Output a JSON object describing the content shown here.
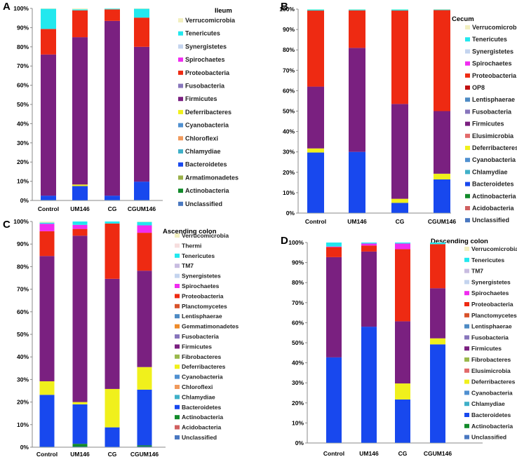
{
  "colors": {
    "Verrucomicrobia": "#f2efbf",
    "Thermi": "#f6dede",
    "Tenericutes": "#22e8ee",
    "TM7": "#c8bce0",
    "Synergistetes": "#c4d4ee",
    "Spirochaetes": "#f02cf0",
    "Proteobacteria": "#ee2a12",
    "OP8": "#c01010",
    "Planctomycetes": "#d8522a",
    "Lentisphaerae": "#4e8bc4",
    "Gemmatimonadetes": "#ee8a2a",
    "Fusobacteria": "#8876bc",
    "Firmicutes": "#7a2080",
    "Fibrobacteres": "#9ab84c",
    "Elusimicrobia": "#e26a6a",
    "Deferribacteres": "#f0f01c",
    "Cyanobacteria": "#5090d0",
    "Chloroflexi": "#f09a5c",
    "Chlamydiae": "#40b0c8",
    "Bacteroidetes": "#1848ee",
    "Armatimonadetes": "#8cb846",
    "Actinobacteria": "#128a2a",
    "Acidobacteria": "#d06060",
    "Unclassified": "#4a78c0",
    "Armatimonadetes_icon": "#9ab04a"
  },
  "chart_data": [
    {
      "panel": "A",
      "type": "bar",
      "stacked": true,
      "title": "Ileum",
      "categories": [
        "Control",
        "UM146",
        "CG",
        "CGUM146"
      ],
      "yticks": [
        "0%",
        "10%",
        "20%",
        "30%",
        "40%",
        "50%",
        "60%",
        "70%",
        "80%",
        "90%",
        "100%"
      ],
      "ylim": [
        0,
        100
      ],
      "legend": [
        "Verrucomicrobia",
        "Tenericutes",
        "Synergistetes",
        "Spirochaetes",
        "Proteobacteria",
        "Fusobacteria",
        "Firmicutes",
        "Deferribacteres",
        "Cyanobacteria",
        "Chloroflexi",
        "Chlamydiae",
        "Bacteroidetes",
        "Armatimonadetes",
        "Actinobacteria",
        "Unclassified"
      ],
      "series": [
        {
          "name": "Unclassified",
          "values": [
            0.3,
            0.2,
            0.3,
            0.3
          ]
        },
        {
          "name": "Bacteroidetes",
          "values": [
            2.2,
            7.3,
            2.2,
            9.5
          ]
        },
        {
          "name": "Deferribacteres",
          "values": [
            0,
            0.8,
            0,
            0
          ]
        },
        {
          "name": "Firmicutes",
          "values": [
            73.5,
            76.7,
            91,
            70.2
          ]
        },
        {
          "name": "Proteobacteria",
          "values": [
            13.3,
            14,
            6,
            15.2
          ]
        },
        {
          "name": "Tenericutes",
          "values": [
            10.5,
            0.5,
            0.4,
            4.6
          ]
        },
        {
          "name": "Verrucomicrobia",
          "values": [
            0.2,
            0.5,
            0.1,
            0.2
          ]
        }
      ]
    },
    {
      "panel": "B",
      "type": "bar",
      "stacked": true,
      "title": "Cecum",
      "categories": [
        "Control",
        "UM146",
        "CG",
        "CGUM146"
      ],
      "yticks": [
        "0%",
        "10%",
        "20%",
        "30%",
        "40%",
        "50%",
        "60%",
        "70%",
        "80%",
        "90%",
        "100%"
      ],
      "ylim": [
        0,
        100
      ],
      "legend": [
        "Verrucomicrobia",
        "Tenericutes",
        "Synergistetes",
        "Spirochaetes",
        "Proteobacteria",
        "OP8",
        "Lentisphaerae",
        "Fusobacteria",
        "Firmicutes",
        "Elusimicrobia",
        "Deferribacteres",
        "Cyanobacteria",
        "Chlamydiae",
        "Bacteroidetes",
        "Actinobacteria",
        "Acidobacteria",
        "Unclassified"
      ],
      "series": [
        {
          "name": "Unclassified",
          "values": [
            0.2,
            0.2,
            0.2,
            0.2
          ]
        },
        {
          "name": "Bacteroidetes",
          "values": [
            29.5,
            29.8,
            4.8,
            16.3
          ]
        },
        {
          "name": "Deferribacteres",
          "values": [
            2,
            0,
            2,
            2.8
          ]
        },
        {
          "name": "Firmicutes",
          "values": [
            30.3,
            51,
            46.5,
            30.7
          ]
        },
        {
          "name": "Proteobacteria",
          "values": [
            37.3,
            18.4,
            45.8,
            49.5
          ]
        },
        {
          "name": "Tenericutes",
          "values": [
            0.5,
            0.4,
            0.5,
            0.3
          ]
        },
        {
          "name": "Verrucomicrobia",
          "values": [
            0.2,
            0.2,
            0.2,
            0.2
          ]
        }
      ]
    },
    {
      "panel": "C",
      "type": "bar",
      "stacked": true,
      "title": "Ascending colon",
      "categories": [
        "Control",
        "UM146",
        "CG",
        "CGUM146"
      ],
      "yticks": [
        "0%",
        "10%",
        "20%",
        "30%",
        "40%",
        "50%",
        "60%",
        "70%",
        "80%",
        "90%",
        "100%"
      ],
      "ylim": [
        0,
        100
      ],
      "legend": [
        "Verrucomicrobia",
        "Thermi",
        "Tenericutes",
        "TM7",
        "Synergistetes",
        "Spirochaetes",
        "Proteobacteria",
        "Planctomycetes",
        "Lentisphaerae",
        "Gemmatimonadetes",
        "Fusobacteria",
        "Firmicutes",
        "Fibrobacteres",
        "Deferribacteres",
        "Cyanobacteria",
        "Chloroflexi",
        "Chlamydiae",
        "Bacteroidetes",
        "Actinobacteria",
        "Acidobacteria",
        "Unclassified"
      ],
      "series": [
        {
          "name": "Unclassified",
          "values": [
            0.3,
            0.2,
            0.2,
            0.3
          ]
        },
        {
          "name": "Actinobacteria",
          "values": [
            0,
            1.3,
            0,
            0.5
          ]
        },
        {
          "name": "Bacteroidetes",
          "values": [
            22.9,
            17.5,
            8.6,
            24.7
          ]
        },
        {
          "name": "Deferribacteres",
          "values": [
            6,
            1,
            17,
            10
          ]
        },
        {
          "name": "Firmicutes",
          "values": [
            55.5,
            73.7,
            48.8,
            42.7
          ]
        },
        {
          "name": "Proteobacteria",
          "values": [
            11,
            3,
            24.5,
            16.8
          ]
        },
        {
          "name": "Spirochaetes",
          "values": [
            3.3,
            1.8,
            0,
            3.3
          ]
        },
        {
          "name": "Tenericutes",
          "values": [
            0.5,
            1.5,
            0.9,
            1.5
          ]
        },
        {
          "name": "Verrucomicrobia",
          "values": [
            0.5,
            0,
            0,
            0.2
          ]
        }
      ]
    },
    {
      "panel": "D",
      "type": "bar",
      "stacked": true,
      "title": "Descending colon",
      "categories": [
        "Control",
        "UM146",
        "CG",
        "CGUM146"
      ],
      "yticks": [
        "0%",
        "10%",
        "20%",
        "30%",
        "40%",
        "50%",
        "60%",
        "70%",
        "80%",
        "90%",
        "100%"
      ],
      "ylim": [
        0,
        100
      ],
      "legend": [
        "Verrucomicrobia",
        "Tenericutes",
        "TM7",
        "Synergistetes",
        "Spirochaetes",
        "Proteobacteria",
        "Planctomycetes",
        "Lentisphaerae",
        "Fusobacteria",
        "Firmicutes",
        "Fibrobacteres",
        "Elusimicrobia",
        "Deferribacteres",
        "Cyanobacteria",
        "Chlamydiae",
        "Bacteroidetes",
        "Actinobacteria",
        "Unclassified"
      ],
      "series": [
        {
          "name": "Unclassified",
          "values": [
            0.2,
            0.2,
            0.2,
            0.2
          ]
        },
        {
          "name": "Bacteroidetes",
          "values": [
            42.5,
            57.8,
            21.5,
            49
          ]
        },
        {
          "name": "Deferribacteres",
          "values": [
            0,
            0,
            8,
            3
          ]
        },
        {
          "name": "Firmicutes",
          "values": [
            50,
            37.5,
            31,
            25
          ]
        },
        {
          "name": "Proteobacteria",
          "values": [
            5,
            3,
            36,
            22
          ]
        },
        {
          "name": "Spirochaetes",
          "values": [
            0.3,
            1,
            2.8,
            0
          ]
        },
        {
          "name": "Tenericutes",
          "values": [
            2,
            0.5,
            0.5,
            0.8
          ]
        }
      ]
    }
  ]
}
